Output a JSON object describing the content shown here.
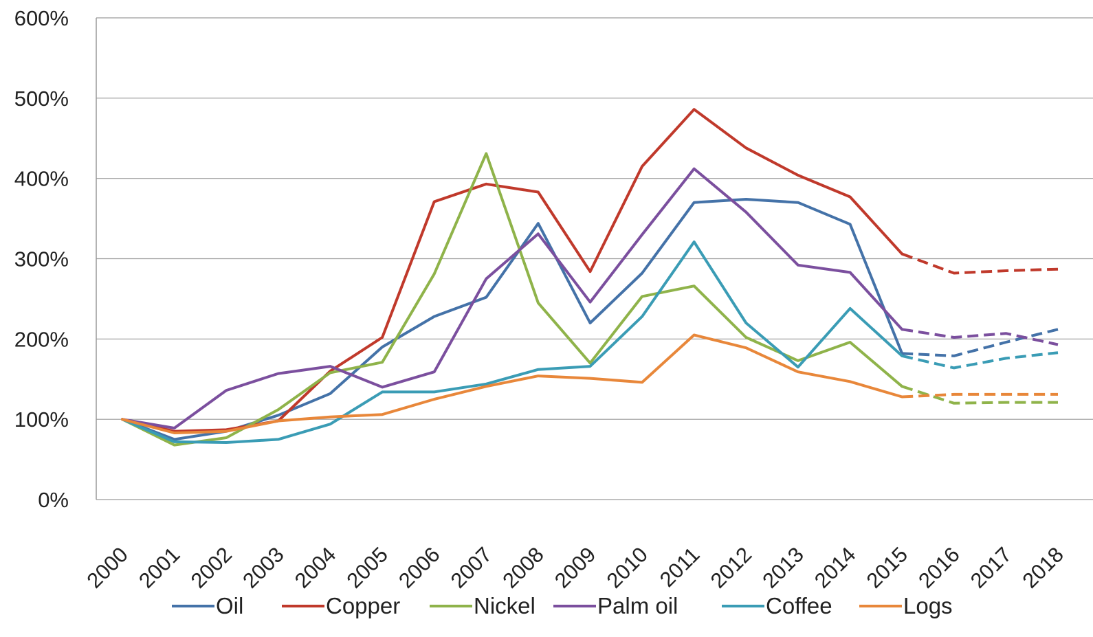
{
  "chart_data": {
    "type": "line",
    "title": "",
    "xlabel": "",
    "ylabel": "",
    "categories": [
      "2000",
      "2001",
      "2002",
      "2003",
      "2004",
      "2005",
      "2006",
      "2007",
      "2008",
      "2009",
      "2010",
      "2011",
      "2012",
      "2013",
      "2014",
      "2015",
      "2016",
      "2017",
      "2018"
    ],
    "y_tick_labels": [
      "0%",
      "100%",
      "200%",
      "300%",
      "400%",
      "500%",
      "600%"
    ],
    "ylim": [
      0,
      600
    ],
    "grid": "horizontal",
    "legend_position": "bottom",
    "actual_through": "2015",
    "forecast_style": "dashed",
    "series": [
      {
        "name": "Oil",
        "color": "#4472a8",
        "values": [
          100,
          75,
          85,
          105,
          132,
          190,
          228,
          252,
          344,
          220,
          282,
          370,
          374,
          370,
          343,
          182,
          179,
          196,
          212
        ]
      },
      {
        "name": "Copper",
        "color": "#c0392b",
        "values": [
          100,
          85,
          87,
          98,
          160,
          202,
          371,
          393,
          383,
          284,
          415,
          486,
          438,
          404,
          377,
          306,
          282,
          285,
          287
        ]
      },
      {
        "name": "Nickel",
        "color": "#8fb34a",
        "values": [
          100,
          68,
          77,
          112,
          158,
          171,
          281,
          431,
          245,
          170,
          253,
          266,
          202,
          173,
          196,
          141,
          120,
          121,
          121
        ]
      },
      {
        "name": "Palm oil",
        "color": "#7b4f9e",
        "values": [
          100,
          89,
          136,
          157,
          166,
          140,
          159,
          275,
          331,
          246,
          330,
          412,
          358,
          292,
          283,
          212,
          202,
          207,
          193
        ]
      },
      {
        "name": "Coffee",
        "color": "#3a9cb5",
        "values": [
          100,
          72,
          71,
          75,
          94,
          134,
          134,
          144,
          162,
          166,
          228,
          321,
          220,
          165,
          238,
          179,
          164,
          176,
          183
        ]
      },
      {
        "name": "Logs",
        "color": "#e8873a",
        "values": [
          100,
          83,
          85,
          98,
          103,
          106,
          125,
          141,
          154,
          151,
          146,
          205,
          189,
          159,
          147,
          128,
          131,
          131,
          131
        ]
      }
    ]
  }
}
